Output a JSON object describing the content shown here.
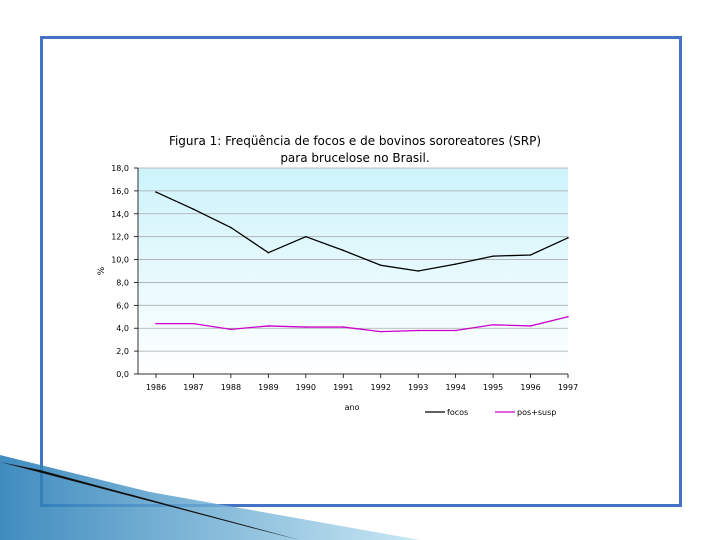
{
  "chart_data": {
    "type": "line",
    "title": "Figura 1: Freqüência de focos e de bovinos sororeatores (SRP)",
    "subtitle": "para brucelose no Brasil.",
    "xlabel": "ano",
    "ylabel": "%",
    "categories": [
      "1986",
      "1987",
      "1988",
      "1989",
      "1990",
      "1991",
      "1992",
      "1993",
      "1994",
      "1995",
      "1996",
      "1997"
    ],
    "ylim": [
      0,
      18
    ],
    "y_ticks": [
      "0,0",
      "2,0",
      "4,0",
      "6,0",
      "8,0",
      "10,0",
      "12,0",
      "14,0",
      "16,0",
      "18,0"
    ],
    "grid": true,
    "legend_position": "bottom-right",
    "series": [
      {
        "name": "focos",
        "color": "#000000",
        "values": [
          15.9,
          14.4,
          12.8,
          10.6,
          12.0,
          10.8,
          9.5,
          9.0,
          9.6,
          10.3,
          10.4,
          11.9
        ]
      },
      {
        "name": "pos+susp",
        "color": "#cc00cc",
        "values": [
          4.4,
          4.4,
          3.9,
          4.2,
          4.1,
          4.1,
          3.7,
          3.8,
          3.8,
          4.3,
          4.2,
          5.0
        ]
      }
    ]
  },
  "colors": {
    "frame": "#4472c4",
    "plot_top": "#cdf3fb",
    "plot_bottom": "#ffffff",
    "grid": "#aaaaaa"
  }
}
